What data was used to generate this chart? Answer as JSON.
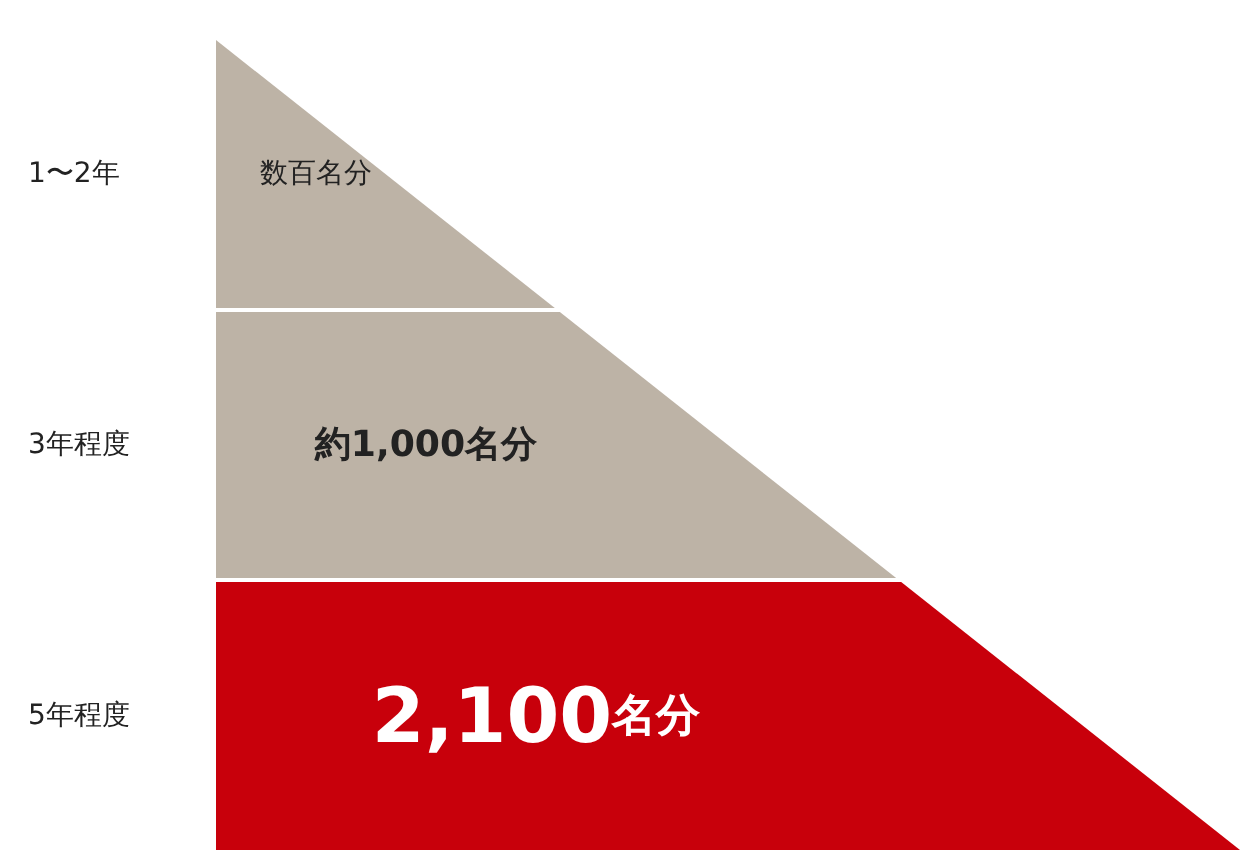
{
  "chart_data": {
    "type": "other",
    "categories": [
      "1〜2年",
      "3年程度",
      "5年程度"
    ],
    "values": [
      null,
      1000,
      2100
    ],
    "value_labels": [
      "数百名分",
      "約1,000名分",
      "2,100名分"
    ],
    "colors": [
      "#bdb3a6",
      "#bdb3a6",
      "#c8000b"
    ]
  }
}
